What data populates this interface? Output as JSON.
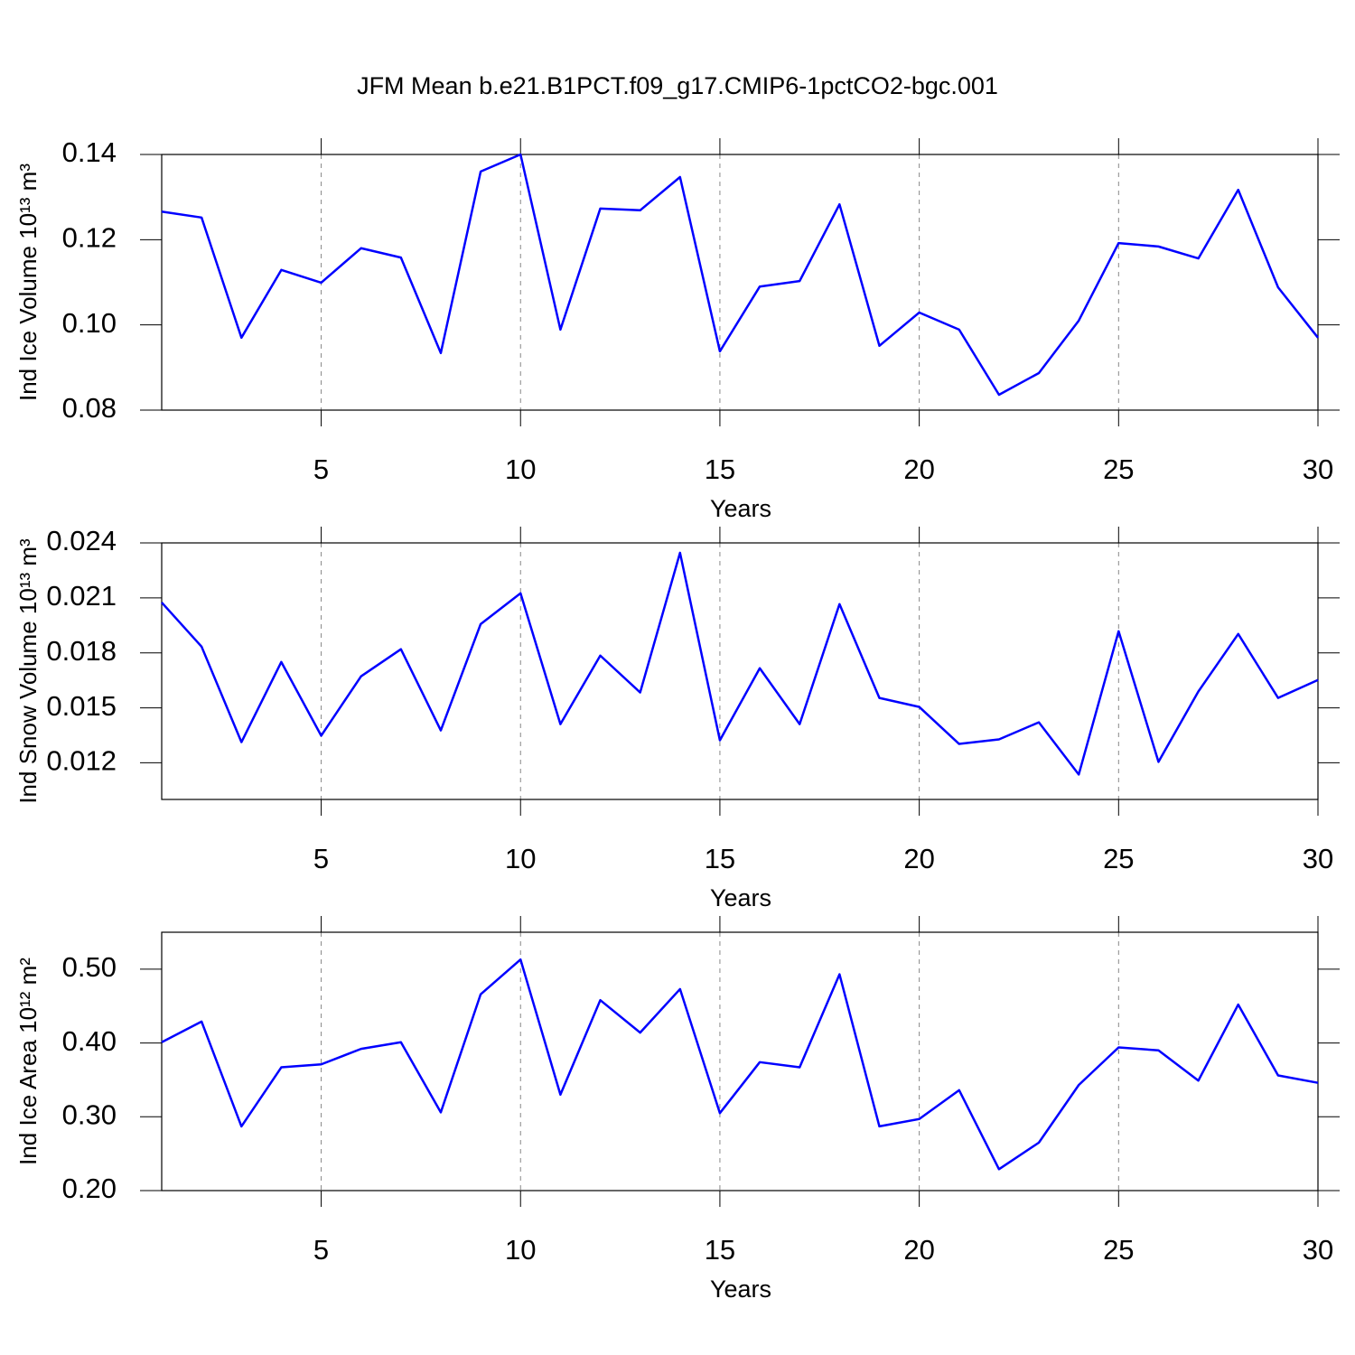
{
  "title": "JFM Mean b.e21.B1PCT.f09_g17.CMIP6-1pctCO2-bgc.001",
  "chart_data": [
    {
      "type": "line",
      "xlabel": "Years",
      "ylabel": "Ind Ice Volume 10¹³ m³",
      "x": [
        1,
        2,
        3,
        4,
        5,
        6,
        7,
        8,
        9,
        10,
        11,
        12,
        13,
        14,
        15,
        16,
        17,
        18,
        19,
        20,
        21,
        22,
        23,
        24,
        25,
        26,
        27,
        28,
        29,
        30
      ],
      "series": [
        {
          "color": "#0000ff",
          "values": [
            0.1266,
            0.1252,
            0.097,
            0.1129,
            0.1099,
            0.118,
            0.1158,
            0.0934,
            0.136,
            0.14,
            0.0989,
            0.1273,
            0.1269,
            0.1347,
            0.0938,
            0.109,
            0.1103,
            0.1283,
            0.0951,
            0.1029,
            0.0989,
            0.0836,
            0.0887,
            0.101,
            0.1192,
            0.1184,
            0.1156,
            0.1317,
            0.1088,
            0.097
          ]
        }
      ],
      "xlim": [
        1,
        30
      ],
      "xticks": [
        5,
        10,
        15,
        20,
        25,
        30
      ],
      "ylim": [
        0.08,
        0.14
      ],
      "yticks": [
        0.08,
        {
          "value": 0.1,
          "label": "0.10"
        },
        0.12,
        0.14
      ],
      "grid": "x"
    },
    {
      "type": "line",
      "xlabel": "Years",
      "ylabel": "Ind Snow Volume 10¹³ m³",
      "x": [
        1,
        2,
        3,
        4,
        5,
        6,
        7,
        8,
        9,
        10,
        11,
        12,
        13,
        14,
        15,
        16,
        17,
        18,
        19,
        20,
        21,
        22,
        23,
        24,
        25,
        26,
        27,
        28,
        29,
        30
      ],
      "series": [
        {
          "color": "#0000ff",
          "values": [
            0.02075,
            0.01834,
            0.01313,
            0.0175,
            0.01348,
            0.01672,
            0.0182,
            0.01377,
            0.01957,
            0.02125,
            0.01411,
            0.01785,
            0.01584,
            0.02346,
            0.01323,
            0.01716,
            0.01411,
            0.02066,
            0.01554,
            0.01505,
            0.01303,
            0.01328,
            0.01421,
            0.01136,
            0.01918,
            0.01205,
            0.01589,
            0.01903,
            0.01554,
            0.01652
          ]
        }
      ],
      "xlim": [
        1,
        30
      ],
      "xticks": [
        5,
        10,
        15,
        20,
        25,
        30
      ],
      "ylim": [
        0.01,
        0.024
      ],
      "yticks": [
        0.012,
        0.015,
        0.018,
        0.021,
        0.024
      ],
      "grid": "x"
    },
    {
      "type": "line",
      "xlabel": "Years",
      "ylabel": "Ind Ice Area 10¹² m²",
      "x": [
        1,
        2,
        3,
        4,
        5,
        6,
        7,
        8,
        9,
        10,
        11,
        12,
        13,
        14,
        15,
        16,
        17,
        18,
        19,
        20,
        21,
        22,
        23,
        24,
        25,
        26,
        27,
        28,
        29,
        30
      ],
      "series": [
        {
          "color": "#0000ff",
          "values": [
            0.401,
            0.429,
            0.287,
            0.367,
            0.371,
            0.392,
            0.401,
            0.306,
            0.466,
            0.513,
            0.33,
            0.458,
            0.414,
            0.473,
            0.305,
            0.374,
            0.367,
            0.493,
            0.287,
            0.297,
            0.336,
            0.229,
            0.265,
            0.343,
            0.394,
            0.39,
            0.349,
            0.452,
            0.356,
            0.346
          ]
        }
      ],
      "xlim": [
        1,
        30
      ],
      "xticks": [
        5,
        10,
        15,
        20,
        25,
        30
      ],
      "ylim": [
        0.2,
        0.55
      ],
      "yticks": [
        {
          "value": 0.2,
          "label": "0.20"
        },
        {
          "value": 0.3,
          "label": "0.30"
        },
        {
          "value": 0.4,
          "label": "0.40"
        },
        {
          "value": 0.5,
          "label": "0.50"
        }
      ],
      "grid": "x"
    }
  ]
}
